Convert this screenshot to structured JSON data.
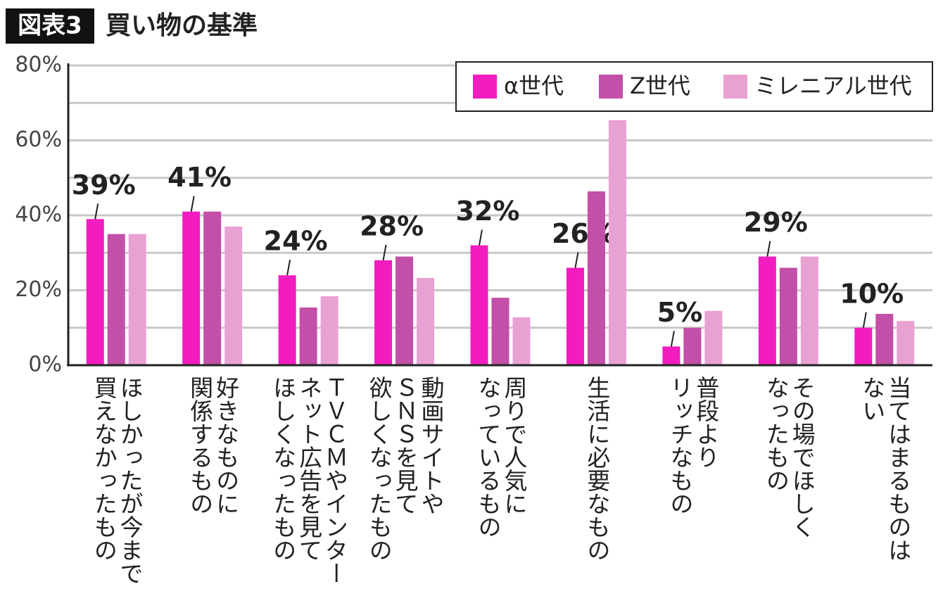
{
  "chart_data": {
    "type": "bar",
    "badge": "図表3",
    "title": "買い物の基準",
    "categories": [
      "ほしかったが今まで\n買えなかったもの",
      "好きなものに\n関係するもの",
      "ＴＶＣＭやインター\nネット広告を見て\nほしくなったもの",
      "動画サイトや\nＳＮＳを見て\n欲しくなったもの",
      "周りで人気に\nなっているもの",
      "生活に必要なもの",
      "普段より\nリッチなもの",
      "その場でほしく\nなったもの",
      "当てはまるものは\nない"
    ],
    "series": [
      {
        "name": "α世代",
        "color": "#f21cc0",
        "values": [
          39,
          41,
          24,
          28,
          32,
          26,
          5,
          29,
          10
        ],
        "value_labels": [
          "39%",
          "41%",
          "24%",
          "28%",
          "32%",
          "26%",
          "5%",
          "29%",
          "10%"
        ]
      },
      {
        "name": "Z世代",
        "color": "#c24fa8",
        "values": [
          35,
          41,
          15.4,
          29,
          18,
          46.4,
          10,
          26,
          13.7
        ]
      },
      {
        "name": "ミレニアル世代",
        "color": "#e8a2d2",
        "values": [
          35,
          37,
          18.4,
          23.3,
          12.8,
          65.4,
          14.5,
          29,
          11.8
        ]
      }
    ],
    "ylim": [
      0,
      80
    ],
    "yticks": [
      {
        "value": 0,
        "label": "0%"
      },
      {
        "value": 20,
        "label": "20%"
      },
      {
        "value": 40,
        "label": "40%"
      },
      {
        "value": 60,
        "label": "60%"
      },
      {
        "value": 80,
        "label": "80%"
      }
    ],
    "minor_yticks": [
      10,
      30,
      50,
      70
    ],
    "grid": true,
    "legend": "top-right"
  }
}
